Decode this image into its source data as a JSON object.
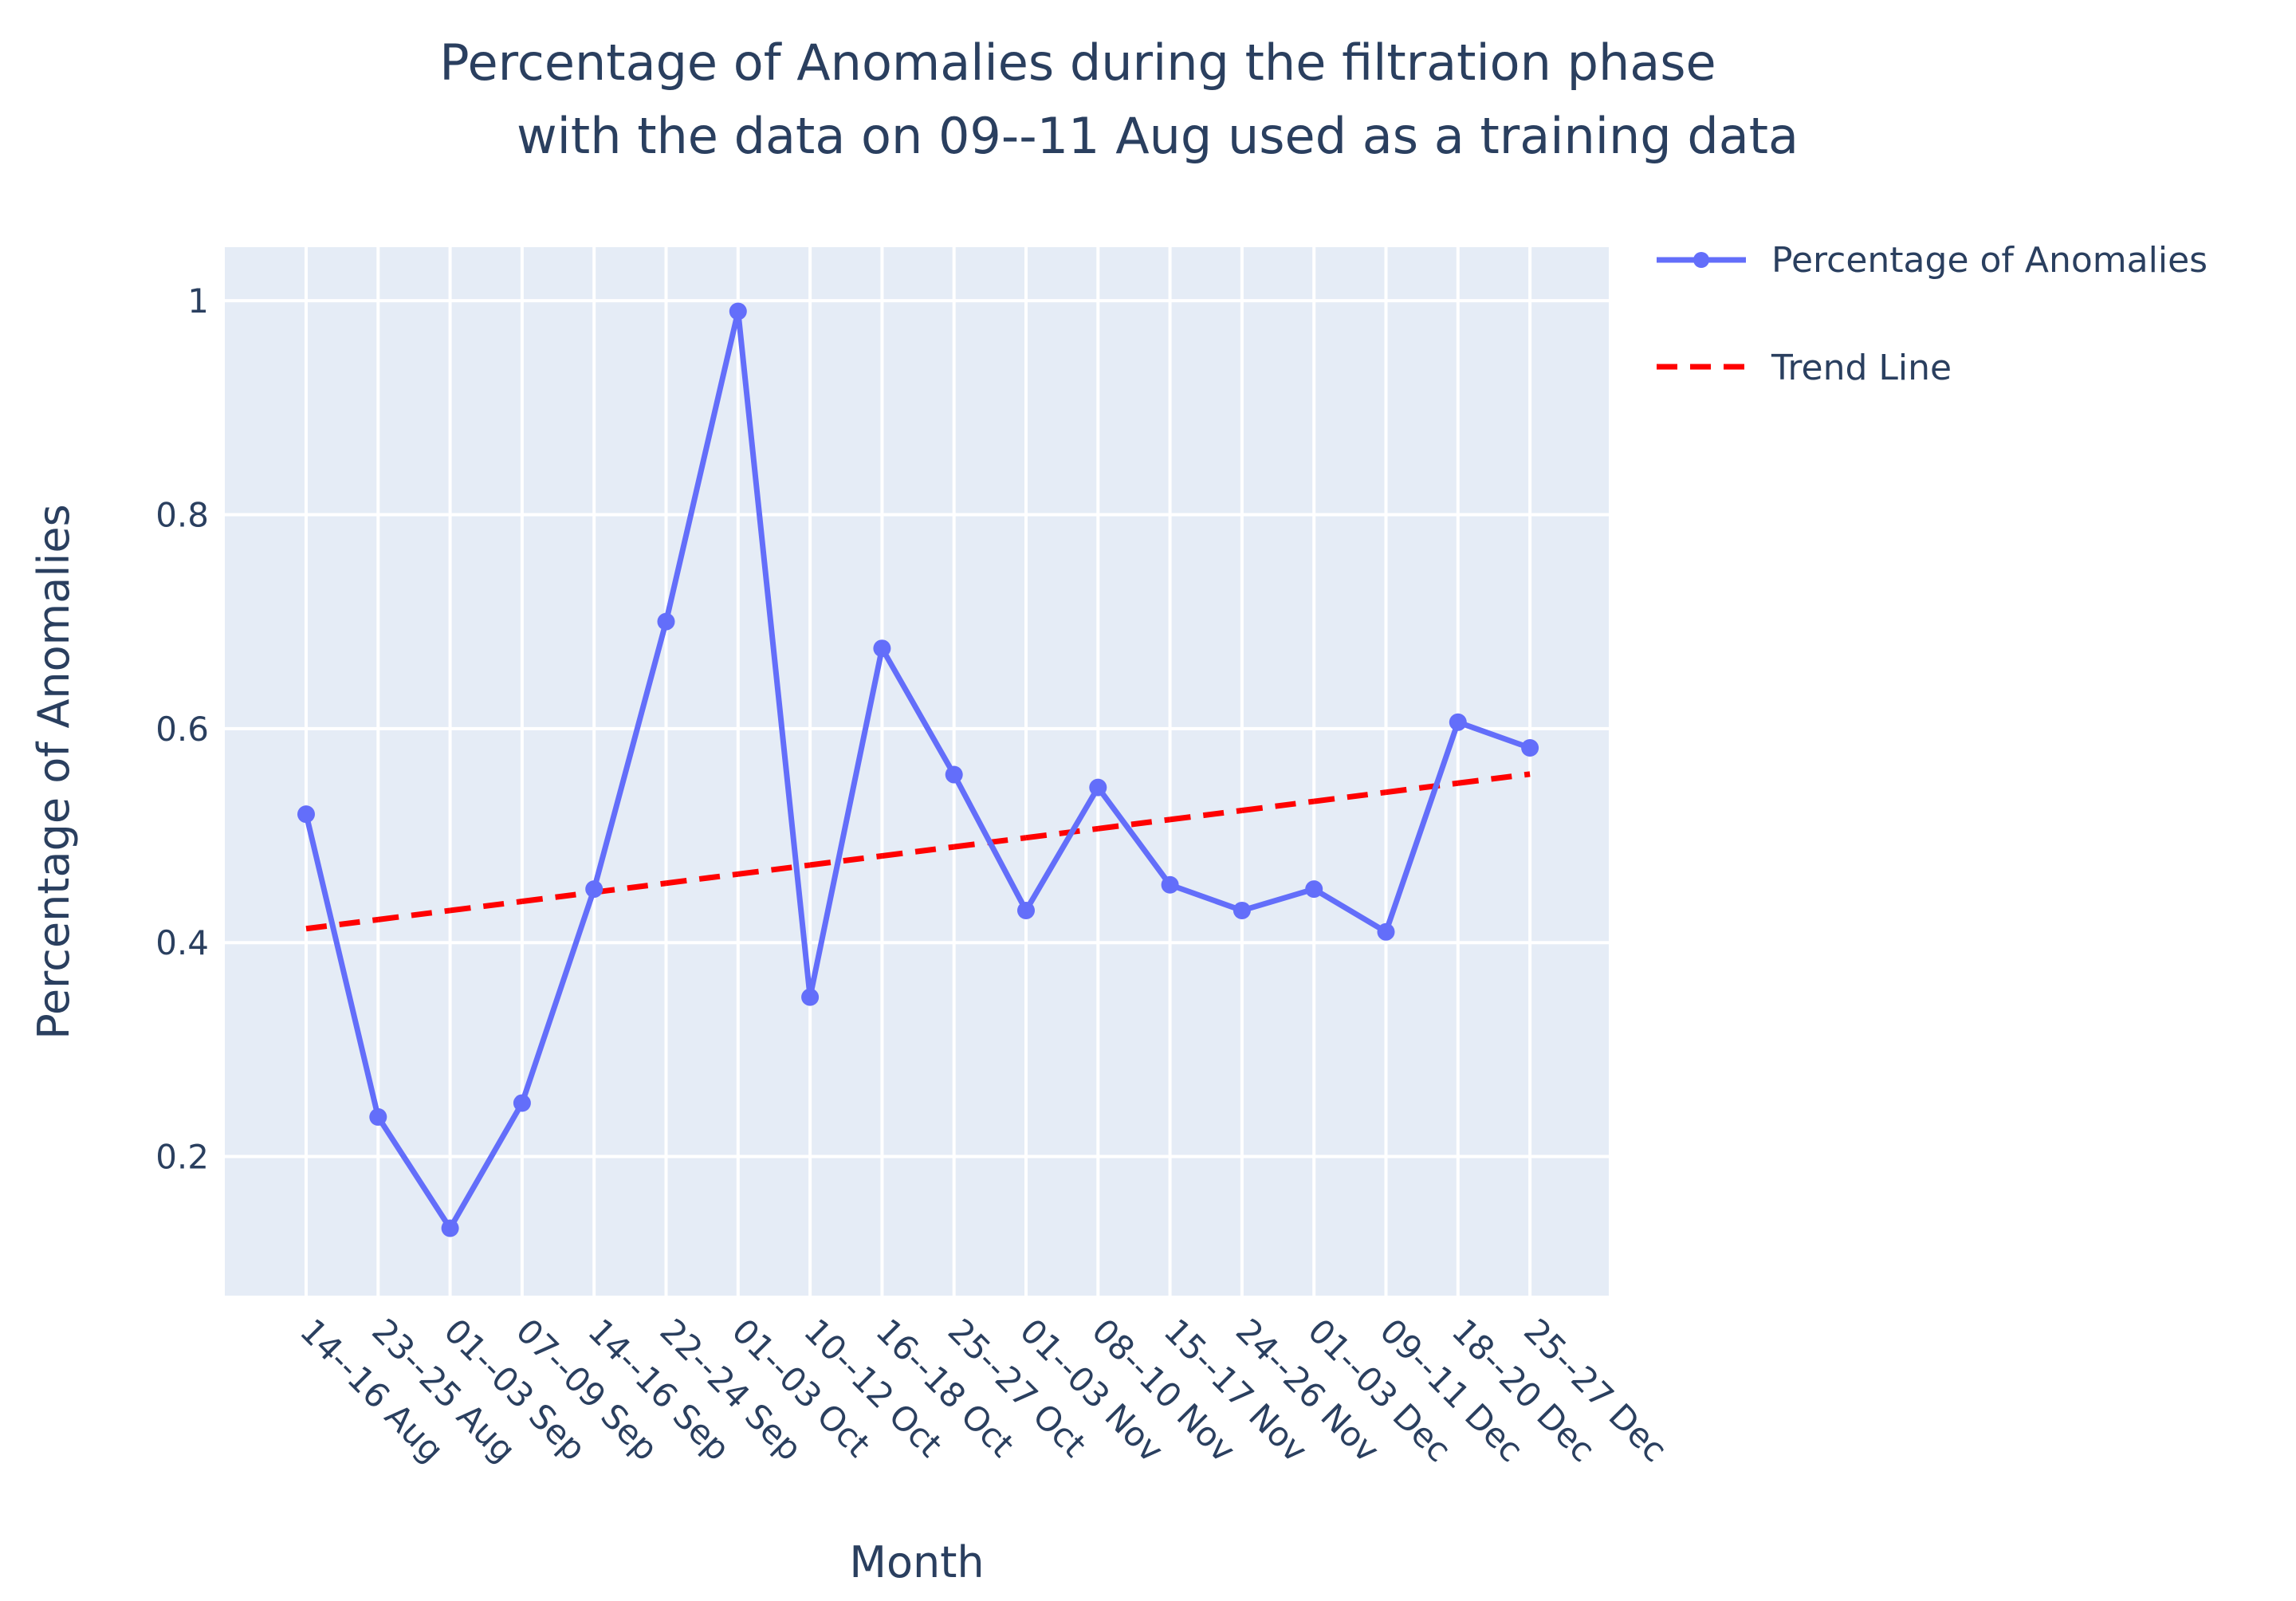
{
  "chart_data": {
    "type": "line",
    "title_lines": [
      "Percentage of Anomalies during the filtration phase",
      "with the data on 09--11 Aug used as a training data"
    ],
    "xlabel": "Month",
    "ylabel": "Percentage of Anomalies",
    "categories": [
      "14--16 Aug",
      "23--25 Aug",
      "01--03 Sep",
      "07--09 Sep",
      "14--16 Sep",
      "22--24 Sep",
      "01--03 Oct",
      "10--12 Oct",
      "16--18 Oct",
      "25--27 Oct",
      "01--03 Nov",
      "08--10 Nov",
      "15--17 Nov",
      "24--26 Nov",
      "01--03 Dec",
      "09--11 Dec",
      "18--20 Dec",
      "25--27 Dec"
    ],
    "ylim": [
      0.07,
      1.05
    ],
    "yticks": [
      0.2,
      0.4,
      0.6,
      0.8,
      1
    ],
    "ytick_labels": [
      "0.2",
      "0.4",
      "0.6",
      "0.8",
      "1"
    ],
    "grid": true,
    "legend_position": "top-right, outside plot",
    "series": [
      {
        "name": "Percentage of Anomalies",
        "style": "lines+markers",
        "color": "#636efa",
        "values": [
          0.52,
          0.237,
          0.133,
          0.25,
          0.45,
          0.7,
          0.99,
          0.349,
          0.675,
          0.557,
          0.43,
          0.545,
          0.454,
          0.43,
          0.45,
          0.41,
          0.606,
          0.582
        ]
      },
      {
        "name": "Trend Line",
        "style": "dashed line",
        "color": "#ff0000",
        "values": [
          0.413,
          0.4215,
          0.43,
          0.4385,
          0.447,
          0.4555,
          0.464,
          0.4725,
          0.481,
          0.4895,
          0.498,
          0.5065,
          0.515,
          0.5235,
          0.532,
          0.5405,
          0.549,
          0.5575
        ]
      }
    ]
  }
}
